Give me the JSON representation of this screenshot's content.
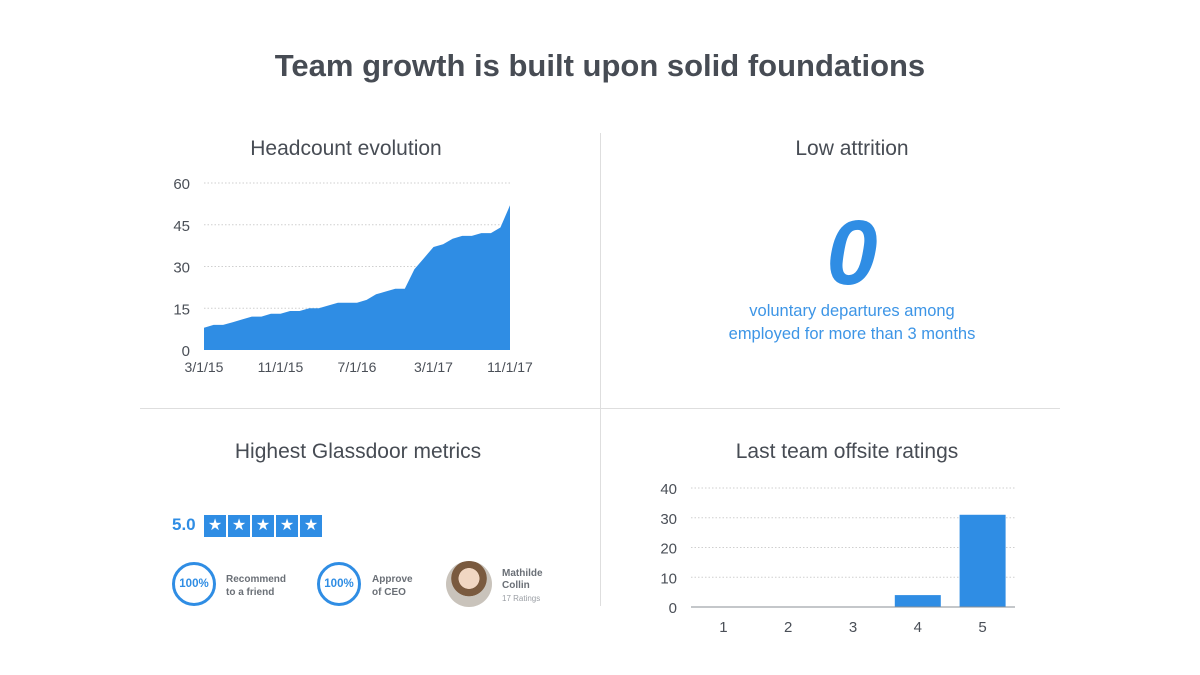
{
  "title": "Team growth is built upon solid foundations",
  "headcount": {
    "title": "Headcount evolution"
  },
  "attrition": {
    "title": "Low attrition",
    "value": "0",
    "line1": "voluntary departures among",
    "line2": "employed for more than 3 months"
  },
  "glassdoor": {
    "title": "Highest Glassdoor metrics",
    "rating": "5.0",
    "stars": 5,
    "recommend_value": "100%",
    "recommend_line1": "Recommend",
    "recommend_line2": "to a friend",
    "approve_value": "100%",
    "approve_line1": "Approve",
    "approve_line2": "of CEO",
    "ceo_first": "Mathilde",
    "ceo_last": "Collin",
    "ceo_ratings": "17 Ratings"
  },
  "offsite": {
    "title": "Last team offsite ratings"
  },
  "colors": {
    "accent": "#2f8de4",
    "text": "#474c54",
    "grid": "#cfcfcf"
  },
  "chart_data": [
    {
      "type": "area",
      "title": "Headcount evolution",
      "x_tick_labels": [
        "3/1/15",
        "11/1/15",
        "7/1/16",
        "3/1/17",
        "11/1/17"
      ],
      "x_tick_index": [
        0,
        8,
        16,
        24,
        32
      ],
      "ylim": [
        0,
        60
      ],
      "y_ticks": [
        0,
        15,
        30,
        45,
        60
      ],
      "grid": true,
      "values": [
        8,
        9,
        9,
        10,
        11,
        12,
        12,
        13,
        13,
        14,
        14,
        15,
        15,
        16,
        17,
        17,
        17,
        18,
        20,
        21,
        22,
        22,
        29,
        33,
        37,
        38,
        40,
        41,
        41,
        42,
        42,
        44,
        52
      ]
    },
    {
      "type": "bar",
      "title": "Last team offsite ratings",
      "categories": [
        "1",
        "2",
        "3",
        "4",
        "5"
      ],
      "values": [
        0,
        0,
        0,
        4,
        31
      ],
      "ylim": [
        0,
        40
      ],
      "y_ticks": [
        0,
        10,
        20,
        30,
        40
      ],
      "grid": true
    }
  ]
}
